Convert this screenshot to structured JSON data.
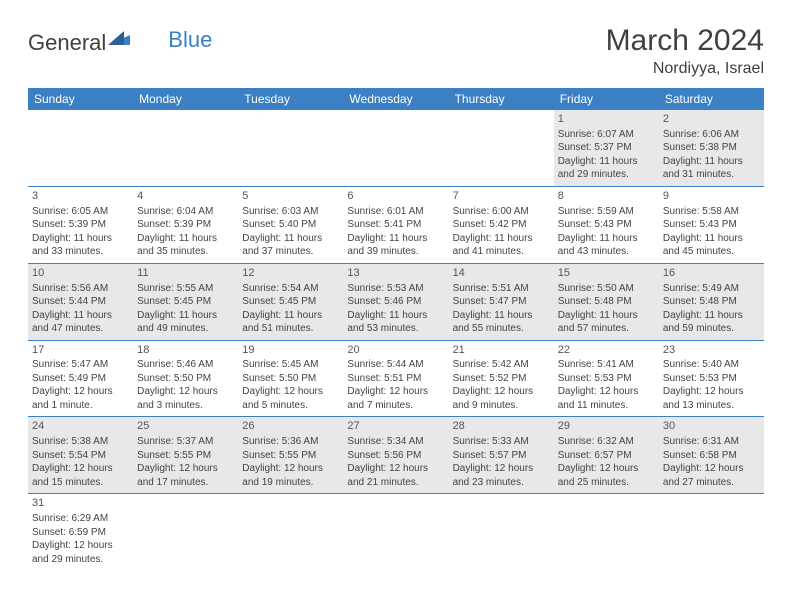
{
  "logo": {
    "part1": "General",
    "part2": "Blue"
  },
  "title": "March 2024",
  "location": "Nordiyya, Israel",
  "colors": {
    "headerBg": "#3b7fc4",
    "headerText": "#ffffff",
    "rowAlt": "#e8e8e8",
    "rowBase": "#ffffff",
    "border": "#3b7fc4",
    "text": "#444444",
    "titleColor": "#404040"
  },
  "dayHeaders": [
    "Sunday",
    "Monday",
    "Tuesday",
    "Wednesday",
    "Thursday",
    "Friday",
    "Saturday"
  ],
  "weeks": [
    [
      null,
      null,
      null,
      null,
      null,
      {
        "n": "1",
        "sunrise": "Sunrise: 6:07 AM",
        "sunset": "Sunset: 5:37 PM",
        "day1": "Daylight: 11 hours",
        "day2": "and 29 minutes."
      },
      {
        "n": "2",
        "sunrise": "Sunrise: 6:06 AM",
        "sunset": "Sunset: 5:38 PM",
        "day1": "Daylight: 11 hours",
        "day2": "and 31 minutes."
      }
    ],
    [
      {
        "n": "3",
        "sunrise": "Sunrise: 6:05 AM",
        "sunset": "Sunset: 5:39 PM",
        "day1": "Daylight: 11 hours",
        "day2": "and 33 minutes."
      },
      {
        "n": "4",
        "sunrise": "Sunrise: 6:04 AM",
        "sunset": "Sunset: 5:39 PM",
        "day1": "Daylight: 11 hours",
        "day2": "and 35 minutes."
      },
      {
        "n": "5",
        "sunrise": "Sunrise: 6:03 AM",
        "sunset": "Sunset: 5:40 PM",
        "day1": "Daylight: 11 hours",
        "day2": "and 37 minutes."
      },
      {
        "n": "6",
        "sunrise": "Sunrise: 6:01 AM",
        "sunset": "Sunset: 5:41 PM",
        "day1": "Daylight: 11 hours",
        "day2": "and 39 minutes."
      },
      {
        "n": "7",
        "sunrise": "Sunrise: 6:00 AM",
        "sunset": "Sunset: 5:42 PM",
        "day1": "Daylight: 11 hours",
        "day2": "and 41 minutes."
      },
      {
        "n": "8",
        "sunrise": "Sunrise: 5:59 AM",
        "sunset": "Sunset: 5:43 PM",
        "day1": "Daylight: 11 hours",
        "day2": "and 43 minutes."
      },
      {
        "n": "9",
        "sunrise": "Sunrise: 5:58 AM",
        "sunset": "Sunset: 5:43 PM",
        "day1": "Daylight: 11 hours",
        "day2": "and 45 minutes."
      }
    ],
    [
      {
        "n": "10",
        "sunrise": "Sunrise: 5:56 AM",
        "sunset": "Sunset: 5:44 PM",
        "day1": "Daylight: 11 hours",
        "day2": "and 47 minutes."
      },
      {
        "n": "11",
        "sunrise": "Sunrise: 5:55 AM",
        "sunset": "Sunset: 5:45 PM",
        "day1": "Daylight: 11 hours",
        "day2": "and 49 minutes."
      },
      {
        "n": "12",
        "sunrise": "Sunrise: 5:54 AM",
        "sunset": "Sunset: 5:45 PM",
        "day1": "Daylight: 11 hours",
        "day2": "and 51 minutes."
      },
      {
        "n": "13",
        "sunrise": "Sunrise: 5:53 AM",
        "sunset": "Sunset: 5:46 PM",
        "day1": "Daylight: 11 hours",
        "day2": "and 53 minutes."
      },
      {
        "n": "14",
        "sunrise": "Sunrise: 5:51 AM",
        "sunset": "Sunset: 5:47 PM",
        "day1": "Daylight: 11 hours",
        "day2": "and 55 minutes."
      },
      {
        "n": "15",
        "sunrise": "Sunrise: 5:50 AM",
        "sunset": "Sunset: 5:48 PM",
        "day1": "Daylight: 11 hours",
        "day2": "and 57 minutes."
      },
      {
        "n": "16",
        "sunrise": "Sunrise: 5:49 AM",
        "sunset": "Sunset: 5:48 PM",
        "day1": "Daylight: 11 hours",
        "day2": "and 59 minutes."
      }
    ],
    [
      {
        "n": "17",
        "sunrise": "Sunrise: 5:47 AM",
        "sunset": "Sunset: 5:49 PM",
        "day1": "Daylight: 12 hours",
        "day2": "and 1 minute."
      },
      {
        "n": "18",
        "sunrise": "Sunrise: 5:46 AM",
        "sunset": "Sunset: 5:50 PM",
        "day1": "Daylight: 12 hours",
        "day2": "and 3 minutes."
      },
      {
        "n": "19",
        "sunrise": "Sunrise: 5:45 AM",
        "sunset": "Sunset: 5:50 PM",
        "day1": "Daylight: 12 hours",
        "day2": "and 5 minutes."
      },
      {
        "n": "20",
        "sunrise": "Sunrise: 5:44 AM",
        "sunset": "Sunset: 5:51 PM",
        "day1": "Daylight: 12 hours",
        "day2": "and 7 minutes."
      },
      {
        "n": "21",
        "sunrise": "Sunrise: 5:42 AM",
        "sunset": "Sunset: 5:52 PM",
        "day1": "Daylight: 12 hours",
        "day2": "and 9 minutes."
      },
      {
        "n": "22",
        "sunrise": "Sunrise: 5:41 AM",
        "sunset": "Sunset: 5:53 PM",
        "day1": "Daylight: 12 hours",
        "day2": "and 11 minutes."
      },
      {
        "n": "23",
        "sunrise": "Sunrise: 5:40 AM",
        "sunset": "Sunset: 5:53 PM",
        "day1": "Daylight: 12 hours",
        "day2": "and 13 minutes."
      }
    ],
    [
      {
        "n": "24",
        "sunrise": "Sunrise: 5:38 AM",
        "sunset": "Sunset: 5:54 PM",
        "day1": "Daylight: 12 hours",
        "day2": "and 15 minutes."
      },
      {
        "n": "25",
        "sunrise": "Sunrise: 5:37 AM",
        "sunset": "Sunset: 5:55 PM",
        "day1": "Daylight: 12 hours",
        "day2": "and 17 minutes."
      },
      {
        "n": "26",
        "sunrise": "Sunrise: 5:36 AM",
        "sunset": "Sunset: 5:55 PM",
        "day1": "Daylight: 12 hours",
        "day2": "and 19 minutes."
      },
      {
        "n": "27",
        "sunrise": "Sunrise: 5:34 AM",
        "sunset": "Sunset: 5:56 PM",
        "day1": "Daylight: 12 hours",
        "day2": "and 21 minutes."
      },
      {
        "n": "28",
        "sunrise": "Sunrise: 5:33 AM",
        "sunset": "Sunset: 5:57 PM",
        "day1": "Daylight: 12 hours",
        "day2": "and 23 minutes."
      },
      {
        "n": "29",
        "sunrise": "Sunrise: 6:32 AM",
        "sunset": "Sunset: 6:57 PM",
        "day1": "Daylight: 12 hours",
        "day2": "and 25 minutes."
      },
      {
        "n": "30",
        "sunrise": "Sunrise: 6:31 AM",
        "sunset": "Sunset: 6:58 PM",
        "day1": "Daylight: 12 hours",
        "day2": "and 27 minutes."
      }
    ],
    [
      {
        "n": "31",
        "sunrise": "Sunrise: 6:29 AM",
        "sunset": "Sunset: 6:59 PM",
        "day1": "Daylight: 12 hours",
        "day2": "and 29 minutes."
      },
      null,
      null,
      null,
      null,
      null,
      null
    ]
  ]
}
